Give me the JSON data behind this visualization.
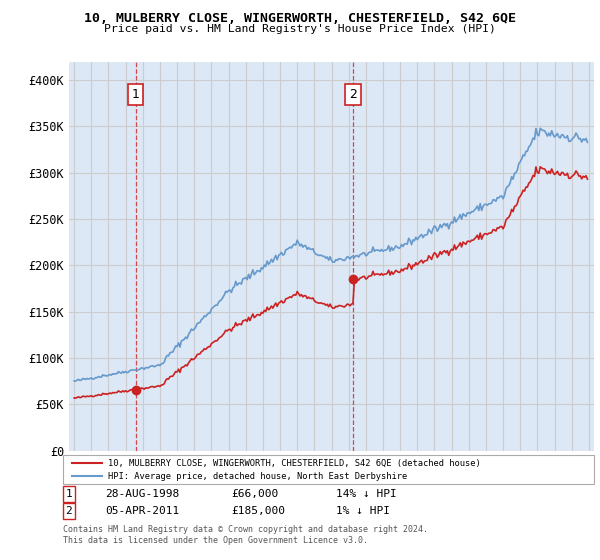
{
  "title": "10, MULBERRY CLOSE, WINGERWORTH, CHESTERFIELD, S42 6QE",
  "subtitle": "Price paid vs. HM Land Registry's House Price Index (HPI)",
  "ylabel_ticks": [
    "£0",
    "£50K",
    "£100K",
    "£150K",
    "£200K",
    "£250K",
    "£300K",
    "£350K",
    "£400K"
  ],
  "ytick_vals": [
    0,
    50000,
    100000,
    150000,
    200000,
    250000,
    300000,
    350000,
    400000
  ],
  "ylim": [
    0,
    420000
  ],
  "sale1_year": 1998,
  "sale1_month": 7,
  "sale1_price": 66000,
  "sale2_year": 2011,
  "sale2_month": 3,
  "sale2_price": 185000,
  "legend_line1": "10, MULBERRY CLOSE, WINGERWORTH, CHESTERFIELD, S42 6QE (detached house)",
  "legend_line2": "HPI: Average price, detached house, North East Derbyshire",
  "hpi_color": "#6699cc",
  "price_color": "#cc2222",
  "vline_color": "#cc2222",
  "grid_color": "#cccccc",
  "bg_color": "#dce8f5",
  "start_year": 1995,
  "end_year": 2025
}
